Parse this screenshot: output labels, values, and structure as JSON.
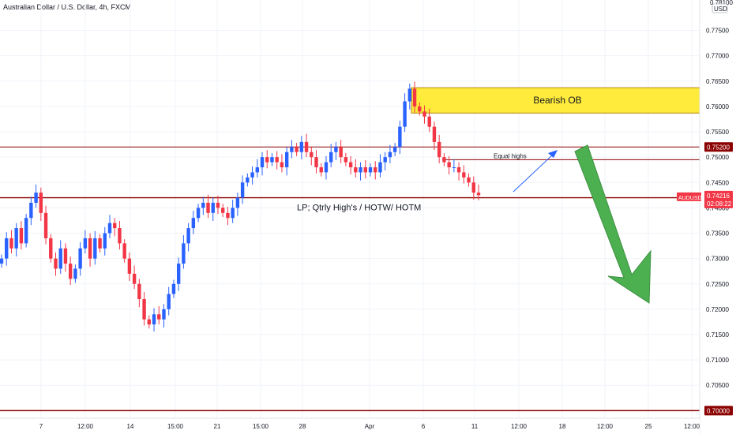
{
  "header": {
    "title": "Australian Dollar / U.S. Dollar, 4h, FXCM",
    "currency": "USD"
  },
  "colors": {
    "up": "#2962ff",
    "down": "#f23645",
    "hline": "#8b0000",
    "ob_fill": "#ffeb3b",
    "arrow_green": "#4caf50",
    "arrow_blue": "#2962ff"
  },
  "chart_data": {
    "type": "candlestick",
    "symbol": "AUDUSD",
    "ylim": [
      0.6985,
      0.781
    ],
    "yticks": [
      "0.77500",
      "0.77000",
      "0.76500",
      "0.76000",
      "0.75500",
      "0.75000",
      "0.74500",
      "0.74000",
      "0.73500",
      "0.73000",
      "0.72500",
      "0.72000",
      "0.71500",
      "0.71000",
      "0.70500"
    ],
    "ytick_top_partial": "0.78100",
    "xticks": [
      "7",
      "12:00",
      "14",
      "15:00",
      "21",
      "15:00",
      "28",
      "Apr",
      "6",
      "11",
      "12:00",
      "18",
      "12:00",
      "25",
      "12:00"
    ],
    "price_labels": [
      {
        "label": "0.75200",
        "value": 0.752
      },
      {
        "label": "0.74200",
        "value": 0.742
      },
      {
        "label": "0.70000",
        "value": 0.7
      }
    ],
    "current": {
      "symbol": "AUDUSD",
      "price": "0.74216",
      "countdown": "02:08:22",
      "value": 0.7421
    },
    "levels": [
      0.752,
      0.742,
      0.7,
      0.7495
    ],
    "order_block": {
      "label": "Bearish OB",
      "from": 0.7587,
      "to": 0.7637
    },
    "annotations": {
      "equal_highs": "Equal highs",
      "lp_line": "LP; Qtrly High's / HOTW/ HOTM"
    },
    "path": [
      0.73,
      0.734,
      0.732,
      0.736,
      0.733,
      0.738,
      0.741,
      0.743,
      0.739,
      0.734,
      0.73,
      0.728,
      0.732,
      0.729,
      0.726,
      0.728,
      0.732,
      0.734,
      0.73,
      0.734,
      0.732,
      0.735,
      0.737,
      0.736,
      0.733,
      0.73,
      0.727,
      0.725,
      0.722,
      0.718,
      0.717,
      0.719,
      0.718,
      0.72,
      0.723,
      0.725,
      0.729,
      0.733,
      0.736,
      0.738,
      0.74,
      0.741,
      0.739,
      0.741,
      0.74,
      0.739,
      0.738,
      0.74,
      0.742,
      0.745,
      0.746,
      0.747,
      0.748,
      0.75,
      0.749,
      0.75,
      0.749,
      0.748,
      0.751,
      0.752,
      0.751,
      0.753,
      0.751,
      0.75,
      0.748,
      0.747,
      0.749,
      0.751,
      0.752,
      0.75,
      0.749,
      0.748,
      0.747,
      0.748,
      0.747,
      0.748,
      0.747,
      0.749,
      0.75,
      0.751,
      0.752,
      0.756,
      0.761,
      0.7635,
      0.76,
      0.759,
      0.758,
      0.756,
      0.753,
      0.75,
      0.749,
      0.748,
      0.748,
      0.747,
      0.746,
      0.745,
      0.743,
      0.7425
    ]
  }
}
